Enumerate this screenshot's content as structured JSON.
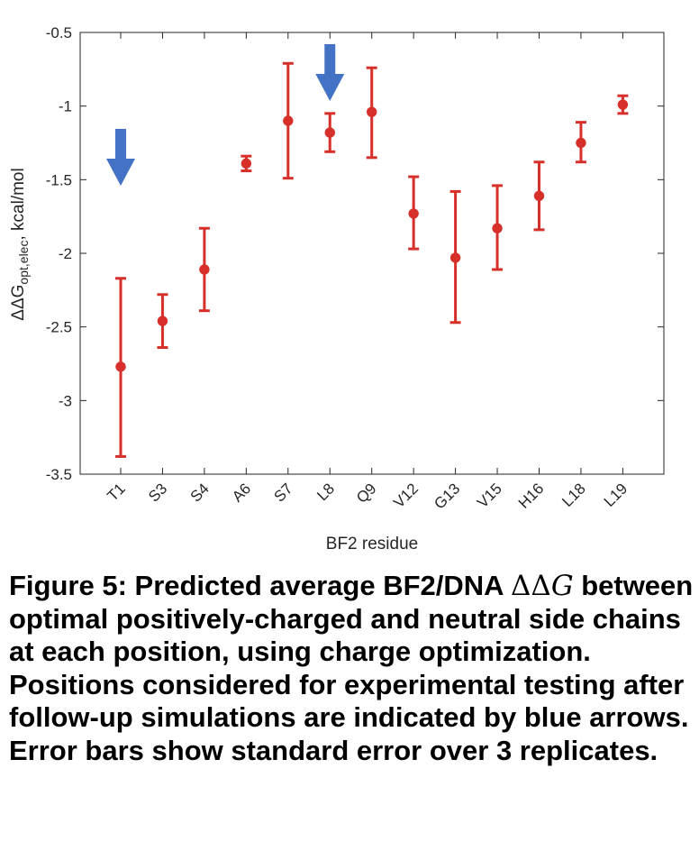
{
  "chart_data": {
    "type": "scatter",
    "subtype": "errorbar",
    "categories": [
      "T1",
      "S3",
      "S4",
      "A6",
      "S7",
      "L8",
      "Q9",
      "V12",
      "G13",
      "V15",
      "H16",
      "L18",
      "L19"
    ],
    "series": [
      {
        "values": [
          -2.77,
          -2.46,
          -2.11,
          -1.39,
          -1.1,
          -1.18,
          -1.04,
          -1.73,
          -2.03,
          -1.83,
          -1.61,
          -1.25,
          -0.99
        ],
        "error_low": [
          -3.38,
          -2.64,
          -2.39,
          -1.44,
          -1.49,
          -1.31,
          -1.35,
          -1.97,
          -2.47,
          -2.11,
          -1.84,
          -1.38,
          -1.05
        ],
        "error_high": [
          -2.17,
          -2.28,
          -1.83,
          -1.34,
          -0.71,
          -1.05,
          -0.74,
          -1.48,
          -1.58,
          -1.54,
          -1.38,
          -1.11,
          -0.93
        ],
        "color": "#d7302a"
      }
    ],
    "arrows": [
      {
        "category": "T1",
        "color": "#4472c4"
      },
      {
        "category": "L8",
        "color": "#4472c4"
      }
    ],
    "xlabel": "BF2 residue",
    "ylabel_parts": {
      "main": "ΔΔG",
      "subscript": "opt,elec",
      "suffix": ", kcal/mol"
    },
    "ylim": [
      -3.5,
      -0.5
    ],
    "yticks": [
      "-0.5",
      "-1",
      "-1.5",
      "-2",
      "-2.5",
      "-3",
      "-3.5"
    ],
    "ytick_values": [
      -0.5,
      -1,
      -1.5,
      -2,
      -2.5,
      -3,
      -3.5
    ],
    "xtick_rotation": 45,
    "grid": false
  },
  "caption": {
    "part1": "Figure 5: Predicted average BF2/DNA ",
    "delta": "ΔΔ",
    "g": "G",
    "part2": " between optimal positively-charged and neutral side chains at each position, using charge optimization.  Positions considered for experimental testing after follow-up simulations are indicated by blue arrows. Error bars show standard error over 3 replicates."
  }
}
